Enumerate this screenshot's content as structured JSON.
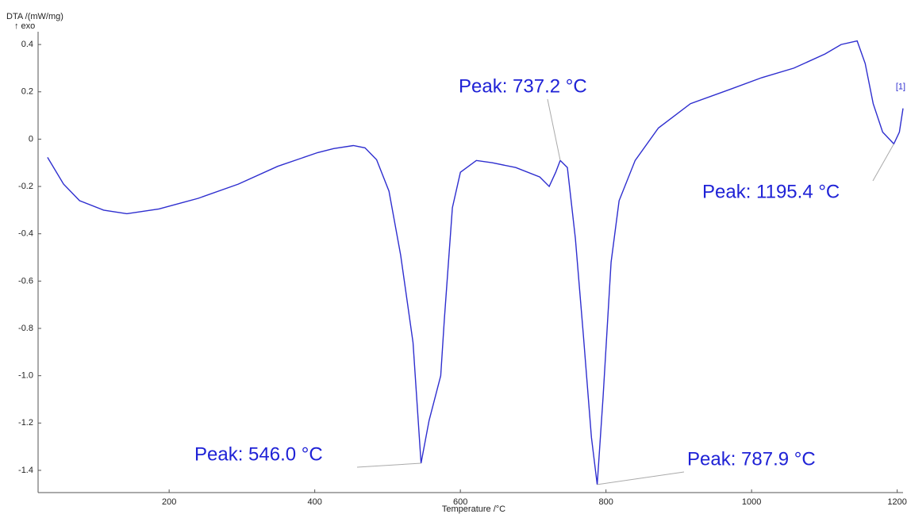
{
  "chart_data": {
    "type": "line",
    "y_label": "DTA /(mW/mg)",
    "y_direction": "↑ exo",
    "x_label": "Temperature /°C",
    "xlim": [
      20,
      1208
    ],
    "ylim": [
      -1.494,
      0.454
    ],
    "xticks": [
      200,
      400,
      600,
      800,
      1000,
      1200
    ],
    "yticks": [
      0.4,
      0.2,
      0,
      -0.2,
      -0.4,
      -0.6,
      -0.8,
      {
        "value": -1,
        "label": "-1.0"
      },
      -1.2,
      -1.4
    ],
    "x": [
      33,
      55,
      77,
      110,
      142,
      186,
      240,
      295,
      349,
      404,
      426,
      453,
      469,
      485,
      502,
      518,
      535,
      546,
      557,
      573,
      578,
      589,
      600,
      622,
      644,
      676,
      709,
      722,
      731,
      737.2,
      747,
      758,
      769,
      780,
      787.9,
      796,
      807,
      818,
      840,
      872,
      916,
      970,
      1014,
      1058,
      1101,
      1123,
      1145,
      1156,
      1167,
      1180,
      1195.4,
      1203,
      1208
    ],
    "series": [
      {
        "name": "[1]",
        "color": "#2e2ecf",
        "values": [
          -0.077,
          -0.19,
          -0.26,
          -0.3,
          -0.315,
          -0.295,
          -0.25,
          -0.19,
          -0.115,
          -0.057,
          -0.04,
          -0.027,
          -0.037,
          -0.087,
          -0.22,
          -0.49,
          -0.86,
          -1.37,
          -1.19,
          -1.0,
          -0.76,
          -0.29,
          -0.14,
          -0.09,
          -0.1,
          -0.12,
          -0.16,
          -0.2,
          -0.14,
          -0.09,
          -0.12,
          -0.42,
          -0.83,
          -1.26,
          -1.46,
          -1.09,
          -0.52,
          -0.26,
          -0.09,
          0.047,
          0.15,
          0.21,
          0.26,
          0.3,
          0.36,
          0.4,
          0.415,
          0.32,
          0.15,
          0.03,
          -0.02,
          0.03,
          0.13
        ]
      }
    ],
    "annotations": [
      {
        "label": "Peak: 546.0 °C",
        "x": 546.0,
        "y": -1.37
      },
      {
        "label": "Peak: 737.2 °C",
        "x": 737.2,
        "y": -0.09
      },
      {
        "label": "Peak: 787.9 °C",
        "x": 787.9,
        "y": -1.46
      },
      {
        "label": "Peak: 1195.4 °C",
        "x": 1195.4,
        "y": -0.02
      }
    ]
  }
}
